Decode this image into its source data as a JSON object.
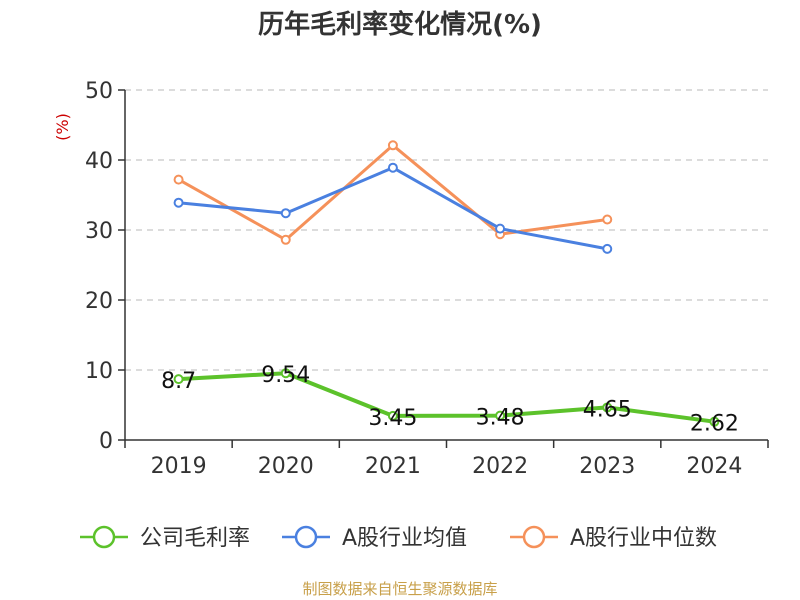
{
  "chart_data": {
    "type": "line",
    "title": "历年毛利率变化情况(%)",
    "ylabel": "(%)",
    "xlabel": "",
    "categories": [
      "2019",
      "2020",
      "2021",
      "2022",
      "2023",
      "2024"
    ],
    "ylim": [
      0,
      50
    ],
    "yticks": [
      0,
      10,
      20,
      30,
      40,
      50
    ],
    "grid": true,
    "legend_position": "bottom",
    "series": [
      {
        "name": "公司毛利率",
        "color": "#5cc22b",
        "values": [
          8.7,
          9.54,
          3.45,
          3.48,
          4.65,
          2.62
        ],
        "labels": [
          "8.7",
          "9.54",
          "3.45",
          "3.48",
          "4.65",
          "2.62"
        ]
      },
      {
        "name": "A股行业均值",
        "color": "#4a80e0",
        "values": [
          33.9,
          32.4,
          38.9,
          30.2,
          27.3,
          null
        ]
      },
      {
        "name": "A股行业中位数",
        "color": "#f5915a",
        "values": [
          37.2,
          28.6,
          42.1,
          29.4,
          31.5,
          null
        ]
      }
    ]
  },
  "source": "制图数据来自恒生聚源数据库"
}
